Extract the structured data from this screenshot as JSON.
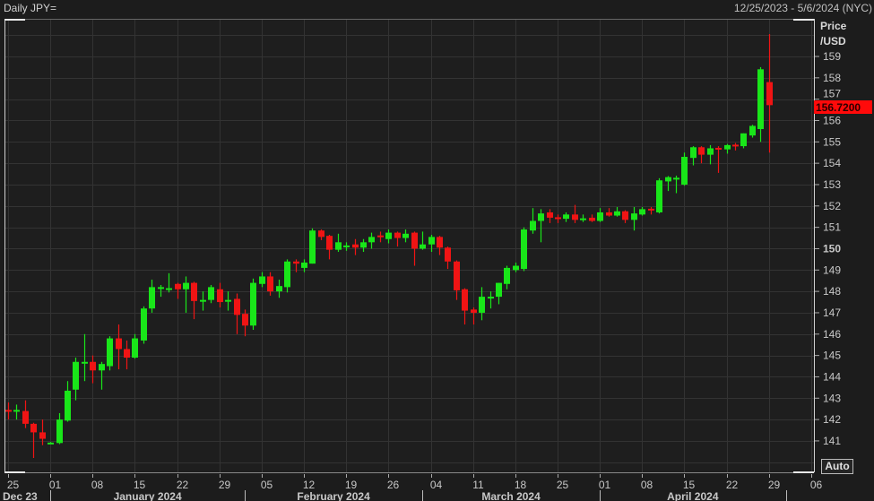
{
  "header": {
    "title": "Daily JPY=",
    "range": "12/25/2023 - 5/6/2024 (NYC)"
  },
  "controls": {
    "auto_label": "Auto"
  },
  "colors": {
    "up": "#19e619",
    "down": "#f01414",
    "background": "#1e1e1e",
    "grid": "#333333",
    "last_price_bg": "#ff0a0a"
  },
  "chart_data": {
    "type": "candlestick",
    "title": "Daily JPY=",
    "ylabel": "Price /USD",
    "ylabel_lines": [
      "Price",
      "/USD"
    ],
    "ylim": [
      140.5,
      160.3
    ],
    "yticks": [
      141,
      142,
      143,
      144,
      145,
      146,
      147,
      148,
      149,
      150,
      151,
      152,
      153,
      154,
      155,
      156,
      157,
      158,
      159
    ],
    "grid": true,
    "last_price": "156.7200",
    "xticks": [
      {
        "label": "25",
        "date": "2023-12-25"
      },
      {
        "label": "01",
        "date": "2024-01-01"
      },
      {
        "label": "08",
        "date": "2024-01-08"
      },
      {
        "label": "15",
        "date": "2024-01-15"
      },
      {
        "label": "22",
        "date": "2024-01-22"
      },
      {
        "label": "29",
        "date": "2024-01-29"
      },
      {
        "label": "05",
        "date": "2024-02-05"
      },
      {
        "label": "12",
        "date": "2024-02-12"
      },
      {
        "label": "19",
        "date": "2024-02-19"
      },
      {
        "label": "26",
        "date": "2024-02-26"
      },
      {
        "label": "04",
        "date": "2024-03-04"
      },
      {
        "label": "11",
        "date": "2024-03-11"
      },
      {
        "label": "18",
        "date": "2024-03-18"
      },
      {
        "label": "25",
        "date": "2024-03-25"
      },
      {
        "label": "01",
        "date": "2024-04-01"
      },
      {
        "label": "08",
        "date": "2024-04-08"
      },
      {
        "label": "15",
        "date": "2024-04-15"
      },
      {
        "label": "22",
        "date": "2024-04-22"
      },
      {
        "label": "29",
        "date": "2024-04-29"
      },
      {
        "label": "06",
        "date": "2024-05-06"
      }
    ],
    "months": [
      {
        "label": "Dec 23",
        "start": "2023-12-25",
        "end": "2024-01-01"
      },
      {
        "label": "January 2024",
        "start": "2024-01-01",
        "end": "2024-02-01"
      },
      {
        "label": "February 2024",
        "start": "2024-02-01",
        "end": "2024-03-01"
      },
      {
        "label": "March 2024",
        "start": "2024-03-01",
        "end": "2024-04-01"
      },
      {
        "label": "April 2024",
        "start": "2024-04-01",
        "end": "2024-05-01"
      }
    ],
    "columns": [
      "date",
      "open",
      "high",
      "low",
      "close"
    ],
    "candles": [
      [
        "2023-12-25",
        142.45,
        142.8,
        142.0,
        142.4
      ],
      [
        "2023-12-26",
        142.38,
        142.7,
        142.0,
        142.45
      ],
      [
        "2023-12-27",
        142.4,
        142.9,
        141.6,
        141.8
      ],
      [
        "2023-12-28",
        141.8,
        141.85,
        140.2,
        141.4
      ],
      [
        "2023-12-29",
        141.4,
        142.0,
        140.8,
        141.1
      ],
      [
        "2024-01-01",
        140.88,
        140.95,
        140.85,
        140.92
      ],
      [
        "2024-01-02",
        140.9,
        142.3,
        140.85,
        142.0
      ],
      [
        "2024-01-03",
        141.95,
        143.8,
        141.9,
        143.35
      ],
      [
        "2024-01-04",
        143.4,
        144.9,
        142.9,
        144.7
      ],
      [
        "2024-01-05",
        144.65,
        146.0,
        143.8,
        144.7
      ],
      [
        "2024-01-08",
        144.7,
        145.0,
        143.7,
        144.3
      ],
      [
        "2024-01-09",
        144.3,
        144.7,
        143.4,
        144.6
      ],
      [
        "2024-01-10",
        144.5,
        145.9,
        144.3,
        145.8
      ],
      [
        "2024-01-11",
        145.8,
        146.45,
        144.35,
        145.3
      ],
      [
        "2024-01-12",
        145.3,
        145.7,
        144.35,
        144.9
      ],
      [
        "2024-01-15",
        144.9,
        146.0,
        144.85,
        145.8
      ],
      [
        "2024-01-16",
        145.7,
        147.3,
        145.55,
        147.2
      ],
      [
        "2024-01-17",
        147.2,
        148.55,
        147.0,
        148.2
      ],
      [
        "2024-01-18",
        148.15,
        148.3,
        147.75,
        148.2
      ],
      [
        "2024-01-19",
        148.1,
        148.85,
        147.95,
        148.15
      ],
      [
        "2024-01-22",
        148.35,
        148.4,
        147.65,
        148.1
      ],
      [
        "2024-01-23",
        148.1,
        148.7,
        147.0,
        148.4
      ],
      [
        "2024-01-24",
        148.4,
        148.45,
        146.7,
        147.55
      ],
      [
        "2024-01-25",
        147.55,
        148.0,
        147.1,
        147.6
      ],
      [
        "2024-01-26",
        147.6,
        148.3,
        147.45,
        148.2
      ],
      [
        "2024-01-29",
        148.1,
        148.4,
        147.25,
        147.5
      ],
      [
        "2024-01-30",
        147.55,
        148.0,
        147.1,
        147.6
      ],
      [
        "2024-01-31",
        147.65,
        147.9,
        146.0,
        146.9
      ],
      [
        "2024-02-01",
        146.95,
        147.15,
        145.9,
        146.4
      ],
      [
        "2024-02-02",
        146.4,
        148.6,
        146.2,
        148.4
      ],
      [
        "2024-02-05",
        148.35,
        148.9,
        148.2,
        148.7
      ],
      [
        "2024-02-06",
        148.7,
        148.9,
        147.8,
        148.0
      ],
      [
        "2024-02-07",
        148.0,
        148.55,
        147.7,
        148.25
      ],
      [
        "2024-02-08",
        148.2,
        149.5,
        147.95,
        149.4
      ],
      [
        "2024-02-09",
        149.4,
        149.5,
        148.9,
        149.3
      ],
      [
        "2024-02-12",
        149.1,
        149.5,
        148.9,
        149.35
      ],
      [
        "2024-02-13",
        149.3,
        150.95,
        149.3,
        150.85
      ],
      [
        "2024-02-14",
        150.85,
        150.9,
        150.4,
        150.55
      ],
      [
        "2024-02-15",
        150.6,
        150.65,
        149.5,
        149.95
      ],
      [
        "2024-02-16",
        149.95,
        150.7,
        149.85,
        150.3
      ],
      [
        "2024-02-19",
        150.1,
        150.3,
        149.9,
        150.15
      ],
      [
        "2024-02-20",
        150.2,
        150.45,
        149.7,
        150.05
      ],
      [
        "2024-02-21",
        150.05,
        150.45,
        149.85,
        150.3
      ],
      [
        "2024-02-22",
        150.3,
        150.75,
        150.0,
        150.55
      ],
      [
        "2024-02-23",
        150.62,
        150.8,
        150.3,
        150.58
      ],
      [
        "2024-02-26",
        150.45,
        150.9,
        150.25,
        150.75
      ],
      [
        "2024-02-27",
        150.75,
        150.8,
        150.1,
        150.5
      ],
      [
        "2024-02-28",
        150.5,
        150.9,
        150.3,
        150.7
      ],
      [
        "2024-02-29",
        150.75,
        150.8,
        149.2,
        150.0
      ],
      [
        "2024-03-01",
        150.0,
        150.8,
        149.95,
        150.2
      ],
      [
        "2024-03-04",
        150.2,
        150.65,
        149.85,
        150.55
      ],
      [
        "2024-03-05",
        150.55,
        150.6,
        149.7,
        150.05
      ],
      [
        "2024-03-06",
        150.05,
        150.1,
        149.05,
        149.4
      ],
      [
        "2024-03-07",
        149.4,
        149.45,
        147.6,
        148.05
      ],
      [
        "2024-03-08",
        148.1,
        148.15,
        146.45,
        147.1
      ],
      [
        "2024-03-11",
        147.15,
        147.25,
        146.45,
        147.0
      ],
      [
        "2024-03-12",
        147.0,
        148.2,
        146.65,
        147.75
      ],
      [
        "2024-03-13",
        147.7,
        148.0,
        147.2,
        147.75
      ],
      [
        "2024-03-14",
        147.75,
        148.4,
        147.4,
        148.4
      ],
      [
        "2024-03-15",
        148.35,
        149.2,
        148.1,
        149.1
      ],
      [
        "2024-03-18",
        149.0,
        149.35,
        148.9,
        149.2
      ],
      [
        "2024-03-19",
        149.05,
        151.0,
        148.95,
        150.9
      ],
      [
        "2024-03-20",
        150.85,
        151.9,
        150.7,
        151.3
      ],
      [
        "2024-03-21",
        151.3,
        151.85,
        150.3,
        151.65
      ],
      [
        "2024-03-22",
        151.7,
        151.85,
        151.2,
        151.45
      ],
      [
        "2024-03-25",
        151.47,
        151.6,
        151.2,
        151.43
      ],
      [
        "2024-03-26",
        151.4,
        151.7,
        151.25,
        151.6
      ],
      [
        "2024-03-27",
        151.6,
        152.05,
        151.2,
        151.35
      ],
      [
        "2024-03-28",
        151.38,
        151.6,
        151.25,
        151.42
      ],
      [
        "2024-03-29",
        151.45,
        151.6,
        151.25,
        151.3
      ],
      [
        "2024-04-01",
        151.3,
        151.9,
        151.25,
        151.7
      ],
      [
        "2024-04-02",
        151.7,
        151.9,
        151.5,
        151.55
      ],
      [
        "2024-04-03",
        151.55,
        151.95,
        151.5,
        151.75
      ],
      [
        "2024-04-04",
        151.75,
        151.8,
        151.2,
        151.35
      ],
      [
        "2024-04-05",
        151.35,
        151.95,
        150.85,
        151.65
      ],
      [
        "2024-04-08",
        151.6,
        151.95,
        151.55,
        151.85
      ],
      [
        "2024-04-09",
        151.87,
        151.95,
        151.6,
        151.83
      ],
      [
        "2024-04-10",
        151.7,
        153.3,
        151.65,
        153.2
      ],
      [
        "2024-04-11",
        153.15,
        153.4,
        152.7,
        153.35
      ],
      [
        "2024-04-12",
        153.28,
        153.42,
        152.6,
        153.32
      ],
      [
        "2024-04-15",
        153.0,
        154.5,
        152.95,
        154.3
      ],
      [
        "2024-04-16",
        154.25,
        154.8,
        153.9,
        154.75
      ],
      [
        "2024-04-17",
        154.75,
        154.8,
        154.0,
        154.4
      ],
      [
        "2024-04-18",
        154.4,
        154.85,
        153.95,
        154.7
      ],
      [
        "2024-04-19",
        154.72,
        154.8,
        153.55,
        154.68
      ],
      [
        "2024-04-22",
        154.65,
        154.9,
        154.45,
        154.85
      ],
      [
        "2024-04-23",
        154.87,
        154.95,
        154.6,
        154.83
      ],
      [
        "2024-04-24",
        154.8,
        155.4,
        154.7,
        155.4
      ],
      [
        "2024-04-25",
        155.3,
        155.8,
        155.2,
        155.75
      ],
      [
        "2024-04-26",
        155.6,
        158.5,
        155.0,
        158.4
      ],
      [
        "2024-04-29",
        157.8,
        160.05,
        154.5,
        156.72
      ]
    ]
  }
}
